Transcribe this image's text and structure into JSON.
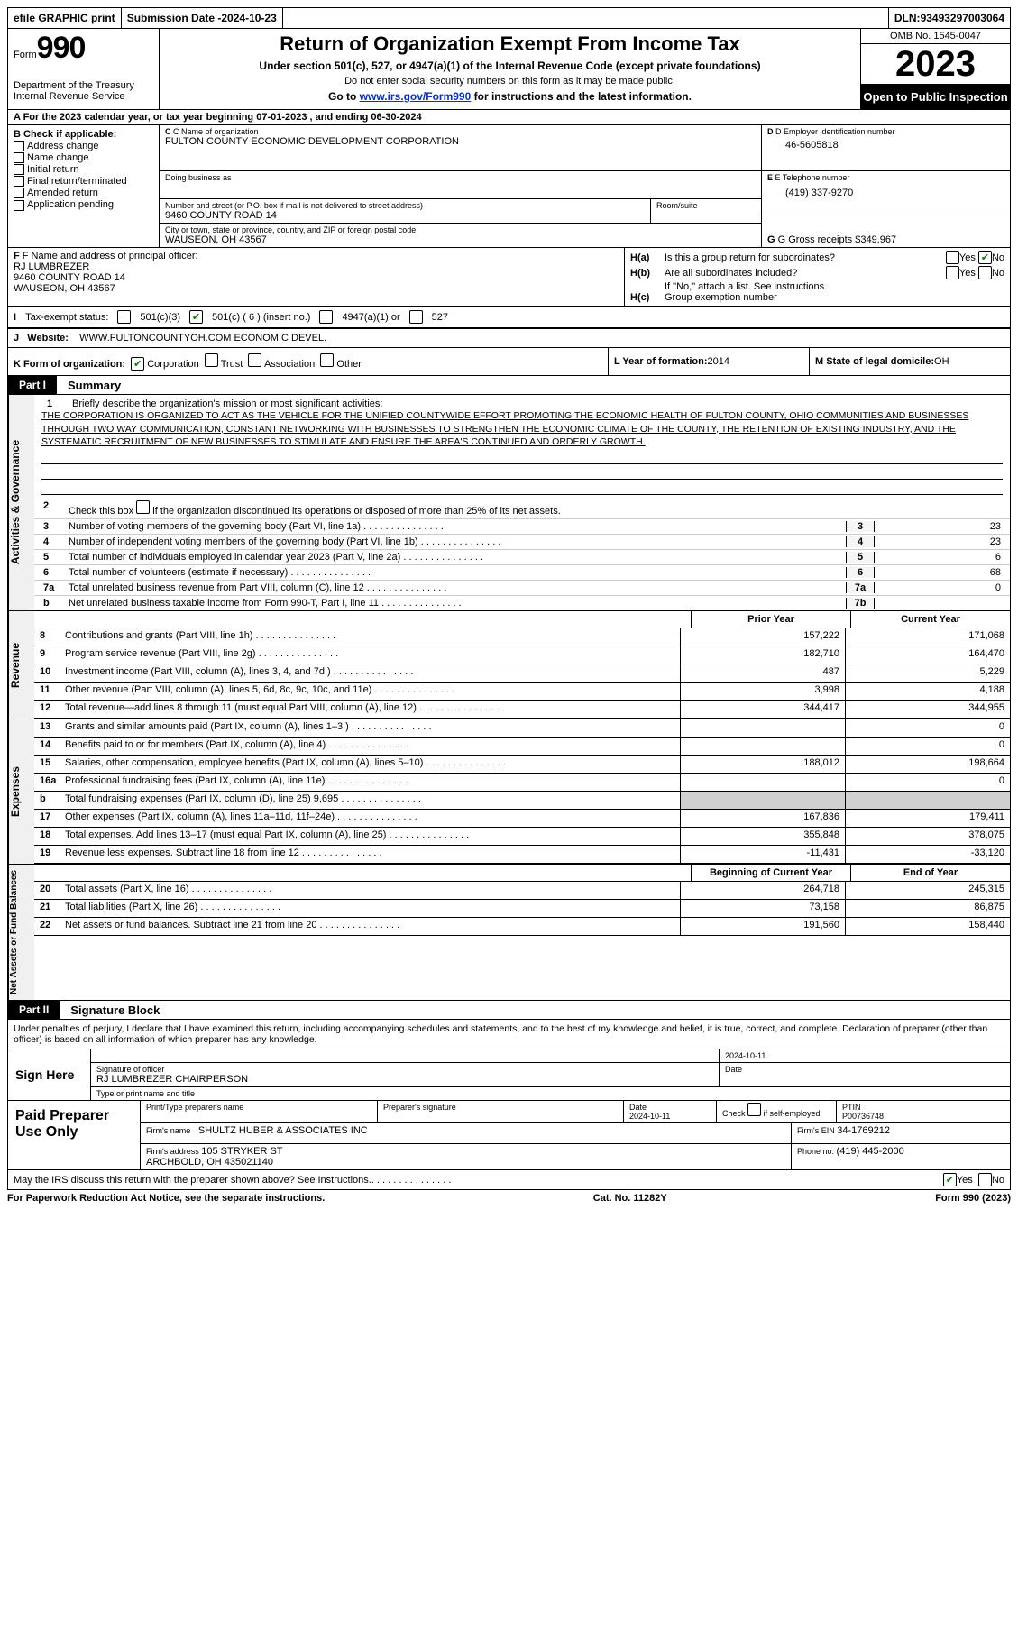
{
  "topbar": {
    "efile": "efile GRAPHIC print",
    "submission_label": "Submission Date - ",
    "submission_date": "2024-10-23",
    "dln_label": "DLN: ",
    "dln": "93493297003064"
  },
  "header": {
    "form_label": "Form",
    "form_number": "990",
    "dept": "Department of the Treasury\nInternal Revenue Service",
    "title": "Return of Organization Exempt From Income Tax",
    "subtitle": "Under section 501(c), 527, or 4947(a)(1) of the Internal Revenue Code (except private foundations)",
    "note": "Do not enter social security numbers on this form as it may be made public.",
    "link_prefix": "Go to ",
    "link_url": "www.irs.gov/Form990",
    "link_suffix": " for instructions and the latest information.",
    "omb": "OMB No. 1545-0047",
    "year": "2023",
    "inspect": "Open to Public Inspection"
  },
  "line_a": {
    "text_prefix": "A For the 2023 calendar year, or tax year beginning ",
    "begin": "07-01-2023",
    "mid": " , and ending ",
    "end": "06-30-2024"
  },
  "section_b": {
    "title": "B Check if applicable:",
    "opts": [
      "Address change",
      "Name change",
      "Initial return",
      "Final return/terminated",
      "Amended return",
      "Application pending"
    ]
  },
  "section_c": {
    "name_label": "C Name of organization",
    "name": "FULTON COUNTY ECONOMIC DEVELOPMENT CORPORATION",
    "dba_label": "Doing business as",
    "addr_label": "Number and street (or P.O. box if mail is not delivered to street address)",
    "addr": "9460 COUNTY ROAD 14",
    "room_label": "Room/suite",
    "city_label": "City or town, state or province, country, and ZIP or foreign postal code",
    "city": "WAUSEON, OH  43567"
  },
  "section_d": {
    "ein_label": "D Employer identification number",
    "ein": "46-5605818",
    "phone_label": "E Telephone number",
    "phone": "(419) 337-9270",
    "gross_label": "G Gross receipts $ ",
    "gross": "349,967"
  },
  "section_f": {
    "label": "F Name and address of principal officer:",
    "name": "RJ LUMBREZER",
    "addr1": "9460 COUNTY ROAD 14",
    "addr2": "WAUSEON, OH  43567"
  },
  "section_h": {
    "ha": "Is this a group return for subordinates?",
    "hb": "Are all subordinates included?",
    "hb_note": "If \"No,\" attach a list. See instructions.",
    "hc": "Group exemption number",
    "yes": "Yes",
    "no": "No",
    "ha_label": "H(a)",
    "hb_label": "H(b)",
    "hc_label": "H(c)"
  },
  "section_i": {
    "label": "Tax-exempt status:",
    "o1": "501(c)(3)",
    "o2": "501(c) ( 6 ) (insert no.)",
    "o3": "4947(a)(1) or",
    "o4": "527",
    "i_prefix": "I"
  },
  "section_j": {
    "label": "Website:",
    "value": "WWW.FULTONCOUNTYOH.COM ECONOMIC DEVEL.",
    "j_prefix": "J"
  },
  "section_k": {
    "label": "K Form of organization:",
    "opts": [
      "Corporation",
      "Trust",
      "Association",
      "Other"
    ],
    "l_label": "L Year of formation: ",
    "l_val": "2014",
    "m_label": "M State of legal domicile: ",
    "m_val": "OH"
  },
  "part1": {
    "num": "Part I",
    "title": "Summary",
    "vtab1": "Activities & Governance",
    "vtab2": "Revenue",
    "vtab3": "Expenses",
    "vtab4": "Net Assets or Fund Balances",
    "q1": "Briefly describe the organization's mission or most significant activities:",
    "mission": "THE CORPORATION IS ORGANIZED TO ACT AS THE VEHICLE FOR THE UNIFIED COUNTYWIDE EFFORT PROMOTING THE ECONOMIC HEALTH OF FULTON COUNTY, OHIO COMMUNITIES AND BUSINESSES THROUGH TWO WAY COMMUNICATION, CONSTANT NETWORKING WITH BUSINESSES TO STRENGTHEN THE ECONOMIC CLIMATE OF THE COUNTY, THE RETENTION OF EXISTING INDUSTRY, AND THE SYSTEMATIC RECRUITMENT OF NEW BUSINESSES TO STIMULATE AND ENSURE THE AREA'S CONTINUED AND ORDERLY GROWTH.",
    "q2": "Check this box        if the organization discontinued its operations or disposed of more than 25% of its net assets.",
    "lines_gov": [
      {
        "n": "3",
        "t": "Number of voting members of the governing body (Part VI, line 1a)",
        "box": "3",
        "v": "23"
      },
      {
        "n": "4",
        "t": "Number of independent voting members of the governing body (Part VI, line 1b)",
        "box": "4",
        "v": "23"
      },
      {
        "n": "5",
        "t": "Total number of individuals employed in calendar year 2023 (Part V, line 2a)",
        "box": "5",
        "v": "6"
      },
      {
        "n": "6",
        "t": "Total number of volunteers (estimate if necessary)",
        "box": "6",
        "v": "68"
      },
      {
        "n": "7a",
        "t": "Total unrelated business revenue from Part VIII, column (C), line 12",
        "box": "7a",
        "v": "0"
      },
      {
        "n": "b",
        "t": "Net unrelated business taxable income from Form 990-T, Part I, line 11",
        "box": "7b",
        "v": ""
      }
    ],
    "col_prior": "Prior Year",
    "col_current": "Current Year",
    "lines_rev": [
      {
        "n": "8",
        "t": "Contributions and grants (Part VIII, line 1h)",
        "p": "157,222",
        "c": "171,068"
      },
      {
        "n": "9",
        "t": "Program service revenue (Part VIII, line 2g)",
        "p": "182,710",
        "c": "164,470"
      },
      {
        "n": "10",
        "t": "Investment income (Part VIII, column (A), lines 3, 4, and 7d )",
        "p": "487",
        "c": "5,229"
      },
      {
        "n": "11",
        "t": "Other revenue (Part VIII, column (A), lines 5, 6d, 8c, 9c, 10c, and 11e)",
        "p": "3,998",
        "c": "4,188"
      },
      {
        "n": "12",
        "t": "Total revenue—add lines 8 through 11 (must equal Part VIII, column (A), line 12)",
        "p": "344,417",
        "c": "344,955"
      }
    ],
    "lines_exp": [
      {
        "n": "13",
        "t": "Grants and similar amounts paid (Part IX, column (A), lines 1–3 )",
        "p": "",
        "c": "0"
      },
      {
        "n": "14",
        "t": "Benefits paid to or for members (Part IX, column (A), line 4)",
        "p": "",
        "c": "0"
      },
      {
        "n": "15",
        "t": "Salaries, other compensation, employee benefits (Part IX, column (A), lines 5–10)",
        "p": "188,012",
        "c": "198,664"
      },
      {
        "n": "16a",
        "t": "Professional fundraising fees (Part IX, column (A), line 11e)",
        "p": "",
        "c": "0"
      },
      {
        "n": "b",
        "t": "Total fundraising expenses (Part IX, column (D), line 25) 9,695",
        "p": "GREY",
        "c": "GREY"
      },
      {
        "n": "17",
        "t": "Other expenses (Part IX, column (A), lines 11a–11d, 11f–24e)",
        "p": "167,836",
        "c": "179,411"
      },
      {
        "n": "18",
        "t": "Total expenses. Add lines 13–17 (must equal Part IX, column (A), line 25)",
        "p": "355,848",
        "c": "378,075"
      },
      {
        "n": "19",
        "t": "Revenue less expenses. Subtract line 18 from line 12",
        "p": "-11,431",
        "c": "-33,120"
      }
    ],
    "col_beg": "Beginning of Current Year",
    "col_end": "End of Year",
    "lines_net": [
      {
        "n": "20",
        "t": "Total assets (Part X, line 16)",
        "p": "264,718",
        "c": "245,315"
      },
      {
        "n": "21",
        "t": "Total liabilities (Part X, line 26)",
        "p": "73,158",
        "c": "86,875"
      },
      {
        "n": "22",
        "t": "Net assets or fund balances. Subtract line 21 from line 20",
        "p": "191,560",
        "c": "158,440"
      }
    ]
  },
  "part2": {
    "num": "Part II",
    "title": "Signature Block",
    "decl": "Under penalties of perjury, I declare that I have examined this return, including accompanying schedules and statements, and to the best of my knowledge and belief, it is true, correct, and complete. Declaration of preparer (other than officer) is based on all information of which preparer has any knowledge.",
    "sign_here": "Sign Here",
    "sig_officer": "Signature of officer",
    "sig_name": "RJ LUMBREZER  CHAIRPERSON",
    "sig_type": "Type or print name and title",
    "date_label": "Date",
    "date1": "2024-10-11",
    "paid": "Paid Preparer Use Only",
    "prep_name_label": "Print/Type preparer's name",
    "prep_sig_label": "Preparer's signature",
    "prep_date": "2024-10-11",
    "check_self": "Check        if self-employed",
    "ptin_label": "PTIN",
    "ptin": "P00736748",
    "firm_name_label": "Firm's name   ",
    "firm_name": "SHULTZ HUBER & ASSOCIATES INC",
    "firm_ein_label": "Firm's EIN  ",
    "firm_ein": "34-1769212",
    "firm_addr_label": "Firm's address ",
    "firm_addr": "105 STRYKER ST\nARCHBOLD, OH  435021140",
    "firm_phone_label": "Phone no. ",
    "firm_phone": "(419) 445-2000",
    "may_irs": "May the IRS discuss this return with the preparer shown above? See Instructions.",
    "yes": "Yes",
    "no": "No"
  },
  "footer": {
    "pra": "For Paperwork Reduction Act Notice, see the separate instructions.",
    "cat": "Cat. No. 11282Y",
    "form": "Form 990 (2023)"
  }
}
